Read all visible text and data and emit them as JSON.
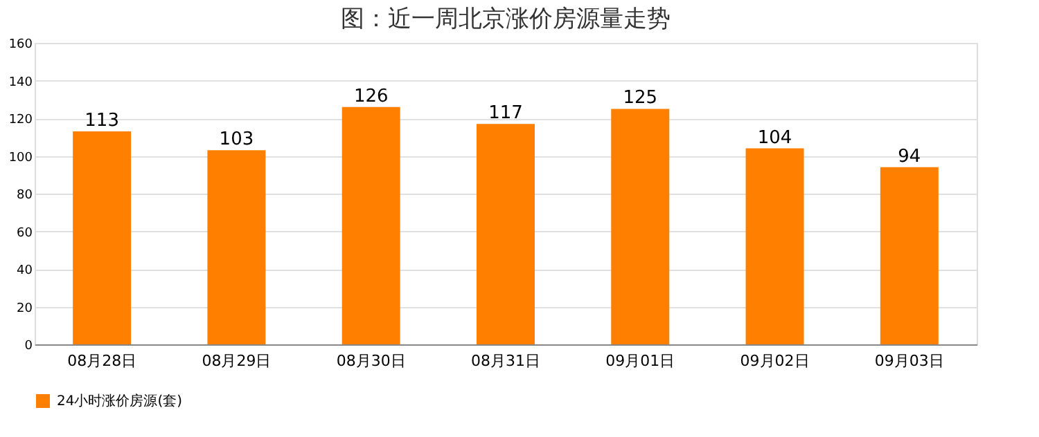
{
  "chart_data": {
    "type": "bar",
    "title": "图：近一周北京涨价房源量走势",
    "categories": [
      "08月28日",
      "08月29日",
      "08月30日",
      "08月31日",
      "09月01日",
      "09月02日",
      "09月03日"
    ],
    "series": [
      {
        "name": "24小时涨价房源(套)",
        "color": "#ff8000",
        "values": [
          113,
          103,
          126,
          117,
          125,
          104,
          94
        ]
      }
    ],
    "ylim": [
      0,
      160
    ],
    "yticks": [
      0,
      20,
      40,
      60,
      80,
      100,
      120,
      140,
      160
    ],
    "grid": "y",
    "legend": "bottom",
    "data_labels": true
  }
}
